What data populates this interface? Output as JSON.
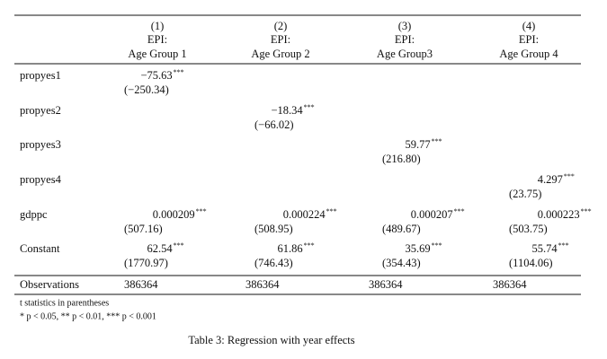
{
  "table": {
    "headers": [
      [
        "(1)",
        "(2)",
        "(3)",
        "(4)"
      ],
      [
        "EPI:",
        "EPI:",
        "EPI:",
        "EPI:"
      ],
      [
        "Age Group 1",
        "Age Group 2",
        "Age Group3",
        "Age Group 4"
      ]
    ],
    "rows": [
      {
        "label": "propyes1",
        "cells": [
          {
            "coef": "−75.63",
            "stars": "***",
            "t": "(−250.34)"
          },
          null,
          null,
          null
        ]
      },
      {
        "label": "propyes2",
        "cells": [
          null,
          {
            "coef": "−18.34",
            "stars": "***",
            "t": "(−66.02)"
          },
          null,
          null
        ]
      },
      {
        "label": "propyes3",
        "cells": [
          null,
          null,
          {
            "coef": "59.77",
            "stars": "***",
            "t": "(216.80)"
          },
          null
        ]
      },
      {
        "label": "propyes4",
        "cells": [
          null,
          null,
          null,
          {
            "coef": "4.297",
            "stars": "***",
            "t": "(23.75)"
          }
        ]
      },
      {
        "label": "gdppc",
        "cells": [
          {
            "coef": "0.000209",
            "stars": "***",
            "t": "(507.16)"
          },
          {
            "coef": "0.000224",
            "stars": "***",
            "t": "(508.95)"
          },
          {
            "coef": "0.000207",
            "stars": "***",
            "t": "(489.67)"
          },
          {
            "coef": "0.000223",
            "stars": "***",
            "t": "(503.75)"
          }
        ]
      },
      {
        "label": "Constant",
        "cells": [
          {
            "coef": "62.54",
            "stars": "***",
            "t": "(1770.97)"
          },
          {
            "coef": "61.86",
            "stars": "***",
            "t": "(746.43)"
          },
          {
            "coef": "35.69",
            "stars": "***",
            "t": "(354.43)"
          },
          {
            "coef": "55.74",
            "stars": "***",
            "t": "(1104.06)"
          }
        ]
      }
    ],
    "observations": {
      "label": "Observations",
      "values": [
        "386364",
        "386364",
        "386364",
        "386364"
      ]
    },
    "notes": [
      "t statistics in parentheses",
      "* p < 0.05, ** p < 0.01, *** p < 0.001"
    ],
    "caption": "Table 3: Regression with year effects"
  }
}
